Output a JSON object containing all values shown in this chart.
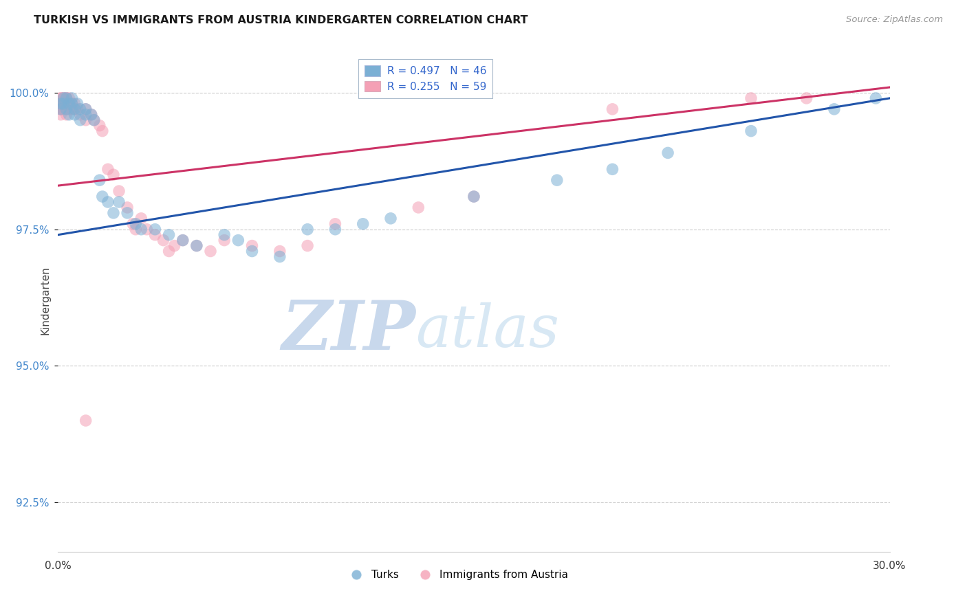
{
  "title": "TURKISH VS IMMIGRANTS FROM AUSTRIA KINDERGARTEN CORRELATION CHART",
  "source": "Source: ZipAtlas.com",
  "ylabel": "Kindergarten",
  "ytick_labels": [
    "92.5%",
    "95.0%",
    "97.5%",
    "100.0%"
  ],
  "ytick_values": [
    0.925,
    0.95,
    0.975,
    1.0
  ],
  "xmin": 0.0,
  "xmax": 0.3,
  "ymin": 0.916,
  "ymax": 1.008,
  "legend_blue": "R = 0.497   N = 46",
  "legend_pink": "R = 0.255   N = 59",
  "legend_label_blue": "Turks",
  "legend_label_pink": "Immigrants from Austria",
  "blue_color": "#7BAFD4",
  "pink_color": "#F4A0B5",
  "trendline_blue_color": "#2255AA",
  "trendline_pink_color": "#CC3366",
  "watermark_zip_color": "#C8D8EC",
  "watermark_atlas_color": "#D8E8F4",
  "blue_R": 0.497,
  "pink_R": 0.255,
  "blue_trendline": [
    0.0,
    0.974,
    0.3,
    0.999
  ],
  "pink_trendline": [
    0.0,
    0.983,
    0.3,
    1.001
  ],
  "blue_scatter": [
    [
      0.001,
      0.998
    ],
    [
      0.001,
      0.997
    ],
    [
      0.002,
      0.999
    ],
    [
      0.002,
      0.998
    ],
    [
      0.003,
      0.999
    ],
    [
      0.003,
      0.997
    ],
    [
      0.004,
      0.998
    ],
    [
      0.004,
      0.996
    ],
    [
      0.005,
      0.999
    ],
    [
      0.005,
      0.998
    ],
    [
      0.006,
      0.997
    ],
    [
      0.006,
      0.996
    ],
    [
      0.007,
      0.998
    ],
    [
      0.008,
      0.997
    ],
    [
      0.008,
      0.995
    ],
    [
      0.01,
      0.997
    ],
    [
      0.01,
      0.996
    ],
    [
      0.012,
      0.996
    ],
    [
      0.013,
      0.995
    ],
    [
      0.015,
      0.984
    ],
    [
      0.016,
      0.981
    ],
    [
      0.018,
      0.98
    ],
    [
      0.02,
      0.978
    ],
    [
      0.022,
      0.98
    ],
    [
      0.025,
      0.978
    ],
    [
      0.028,
      0.976
    ],
    [
      0.03,
      0.975
    ],
    [
      0.035,
      0.975
    ],
    [
      0.04,
      0.974
    ],
    [
      0.045,
      0.973
    ],
    [
      0.05,
      0.972
    ],
    [
      0.06,
      0.974
    ],
    [
      0.065,
      0.973
    ],
    [
      0.07,
      0.971
    ],
    [
      0.08,
      0.97
    ],
    [
      0.09,
      0.975
    ],
    [
      0.1,
      0.975
    ],
    [
      0.11,
      0.976
    ],
    [
      0.12,
      0.977
    ],
    [
      0.15,
      0.981
    ],
    [
      0.18,
      0.984
    ],
    [
      0.2,
      0.986
    ],
    [
      0.22,
      0.989
    ],
    [
      0.25,
      0.993
    ],
    [
      0.28,
      0.997
    ],
    [
      0.295,
      0.999
    ]
  ],
  "pink_scatter": [
    [
      0.001,
      0.999
    ],
    [
      0.001,
      0.999
    ],
    [
      0.001,
      0.998
    ],
    [
      0.001,
      0.998
    ],
    [
      0.001,
      0.997
    ],
    [
      0.001,
      0.997
    ],
    [
      0.001,
      0.996
    ],
    [
      0.002,
      0.999
    ],
    [
      0.002,
      0.999
    ],
    [
      0.002,
      0.998
    ],
    [
      0.002,
      0.998
    ],
    [
      0.002,
      0.997
    ],
    [
      0.002,
      0.997
    ],
    [
      0.003,
      0.999
    ],
    [
      0.003,
      0.999
    ],
    [
      0.003,
      0.998
    ],
    [
      0.003,
      0.997
    ],
    [
      0.003,
      0.996
    ],
    [
      0.004,
      0.999
    ],
    [
      0.004,
      0.998
    ],
    [
      0.004,
      0.997
    ],
    [
      0.005,
      0.998
    ],
    [
      0.005,
      0.997
    ],
    [
      0.006,
      0.998
    ],
    [
      0.006,
      0.997
    ],
    [
      0.007,
      0.997
    ],
    [
      0.008,
      0.996
    ],
    [
      0.01,
      0.997
    ],
    [
      0.01,
      0.995
    ],
    [
      0.012,
      0.996
    ],
    [
      0.013,
      0.995
    ],
    [
      0.015,
      0.994
    ],
    [
      0.016,
      0.993
    ],
    [
      0.018,
      0.986
    ],
    [
      0.02,
      0.985
    ],
    [
      0.022,
      0.982
    ],
    [
      0.025,
      0.979
    ],
    [
      0.027,
      0.976
    ],
    [
      0.028,
      0.975
    ],
    [
      0.03,
      0.977
    ],
    [
      0.032,
      0.975
    ],
    [
      0.035,
      0.974
    ],
    [
      0.038,
      0.973
    ],
    [
      0.04,
      0.971
    ],
    [
      0.042,
      0.972
    ],
    [
      0.045,
      0.973
    ],
    [
      0.05,
      0.972
    ],
    [
      0.055,
      0.971
    ],
    [
      0.06,
      0.973
    ],
    [
      0.07,
      0.972
    ],
    [
      0.08,
      0.971
    ],
    [
      0.09,
      0.972
    ],
    [
      0.01,
      0.94
    ],
    [
      0.1,
      0.976
    ],
    [
      0.13,
      0.979
    ],
    [
      0.15,
      0.981
    ],
    [
      0.2,
      0.997
    ],
    [
      0.25,
      0.999
    ],
    [
      0.27,
      0.999
    ]
  ]
}
